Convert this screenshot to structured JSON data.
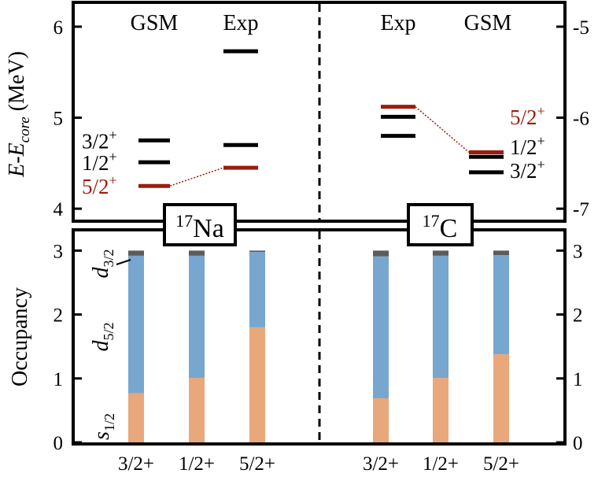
{
  "chart_data": [
    {
      "type": "level-scheme",
      "ylabel": {
        "main": "E-E",
        "sub": "core",
        "unit": " (MeV)"
      },
      "left_axis": {
        "ylim": [
          3.88,
          6.25
        ],
        "ticks": [
          "4",
          "5",
          "6"
        ],
        "tick_values": [
          4,
          5,
          6
        ]
      },
      "right_axis": {
        "ylim": [
          -7.12,
          -4.75
        ],
        "ticks": [
          "-5",
          "-6",
          "-7"
        ],
        "tick_values": [
          -5,
          -6,
          -7
        ]
      },
      "columns": {
        "left_gsm": "GSM",
        "left_exp": "Exp",
        "right_exp": "Exp",
        "right_gsm": "GSM"
      },
      "nucleus_left": {
        "mass": "17",
        "symbol": "Na"
      },
      "nucleus_right": {
        "mass": "17",
        "symbol": "C"
      },
      "levels": {
        "na_gsm": [
          {
            "label": "3/2+",
            "base": "3/2",
            "sup": "+",
            "energy": 4.75,
            "color": "#000000"
          },
          {
            "label": "1/2+",
            "base": "1/2",
            "sup": "+",
            "energy": 4.51,
            "color": "#000000"
          },
          {
            "label": "5/2+",
            "base": "5/2",
            "sup": "+",
            "energy": 4.25,
            "color": "#9b1c0c"
          }
        ],
        "na_exp": [
          {
            "label": "",
            "energy": 5.73,
            "color": "#000000"
          },
          {
            "label": "",
            "energy": 4.7,
            "color": "#000000"
          },
          {
            "label": "",
            "energy": 4.45,
            "color": "#9b1c0c"
          }
        ],
        "c_exp": [
          {
            "label": "",
            "energy": -5.88,
            "color": "#9b1c0c"
          },
          {
            "label": "",
            "energy": -5.99,
            "color": "#000000"
          },
          {
            "label": "",
            "energy": -6.2,
            "color": "#000000"
          }
        ],
        "c_gsm": [
          {
            "label": "5/2+",
            "base": "5/2",
            "sup": "+",
            "energy": -6.38,
            "color": "#9b1c0c"
          },
          {
            "label": "1/2+",
            "base": "1/2",
            "sup": "+",
            "energy": -6.43,
            "color": "#000000"
          },
          {
            "label": "3/2+",
            "base": "3/2",
            "sup": "+",
            "energy": -6.6,
            "color": "#000000"
          }
        ]
      }
    },
    {
      "type": "bar",
      "stacked": true,
      "ylabel": "Occupancy",
      "ylim": [
        0,
        3.3
      ],
      "ticks": [
        "0",
        "1",
        "2",
        "3"
      ],
      "tick_values": [
        0,
        1,
        2,
        3
      ],
      "categories": [
        "3/2+",
        "1/2+",
        "5/2+",
        "3/2+",
        "1/2+",
        "5/2+"
      ],
      "series": [
        {
          "name": "s1/2",
          "base": "s",
          "sub": "1/2",
          "color": "#e8a87c",
          "values": [
            0.77,
            1.01,
            1.8,
            0.69,
            1.01,
            1.38
          ]
        },
        {
          "name": "d5/2",
          "base": "d",
          "sub": "5/2",
          "color": "#77a6cf",
          "values": [
            2.15,
            1.91,
            1.18,
            2.22,
            1.91,
            1.55
          ]
        },
        {
          "name": "d3/2",
          "base": "d",
          "sub": "3/2",
          "color": "#5c5c5c",
          "values": [
            0.08,
            0.08,
            0.02,
            0.09,
            0.08,
            0.07
          ]
        }
      ]
    }
  ]
}
